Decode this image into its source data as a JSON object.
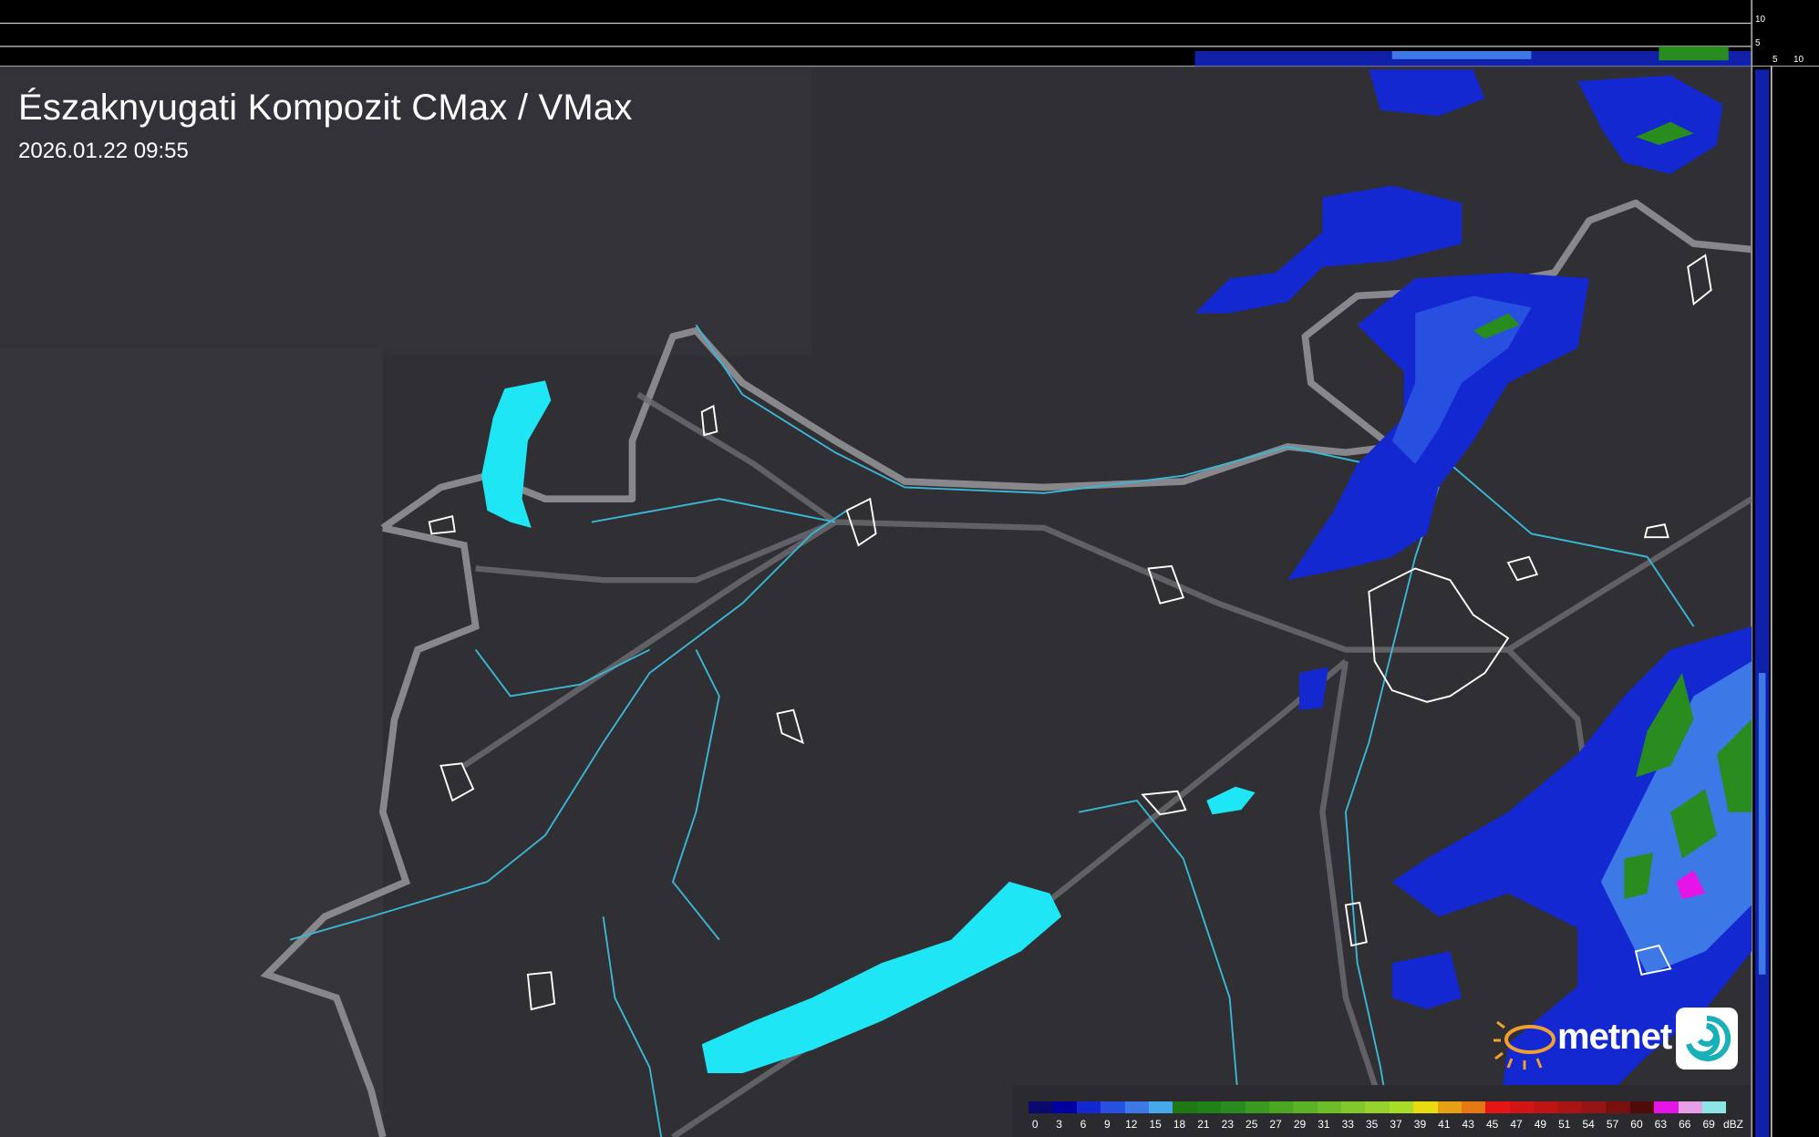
{
  "header": {
    "title": "Északnyugati Kompozit CMax / VMax",
    "timestamp": "2026.01.22 09:55"
  },
  "side_profile": {
    "top_ticks": [
      "10",
      "5"
    ],
    "right_ticks": [
      "5",
      "10"
    ]
  },
  "legend": {
    "unit": "dBZ",
    "labels": [
      "0",
      "3",
      "6",
      "9",
      "12",
      "15",
      "18",
      "21",
      "23",
      "25",
      "27",
      "29",
      "31",
      "33",
      "35",
      "37",
      "39",
      "41",
      "43",
      "45",
      "47",
      "49",
      "51",
      "54",
      "57",
      "60",
      "63",
      "66",
      "69"
    ],
    "colors": [
      "#0a0a6e",
      "#0000a0",
      "#1428d2",
      "#2850e0",
      "#3c78e6",
      "#48a8ec",
      "#1e7814",
      "#1e8218",
      "#288c1e",
      "#3a9a1e",
      "#4aa620",
      "#5ab224",
      "#6cbe28",
      "#80c82c",
      "#96d22c",
      "#a8dc28",
      "#e6dc10",
      "#e6a014",
      "#e67814",
      "#e61414",
      "#d21414",
      "#be1414",
      "#aa1414",
      "#961414",
      "#781010",
      "#500a0a",
      "#e614e6",
      "#e6a0e6",
      "#8ce6e6"
    ]
  },
  "colors": {
    "background": "#2e2e33",
    "border": "#8a8a8e",
    "water": "#1fe6f5",
    "river": "#3ab6d6"
  },
  "logo": {
    "text": "metnet"
  }
}
